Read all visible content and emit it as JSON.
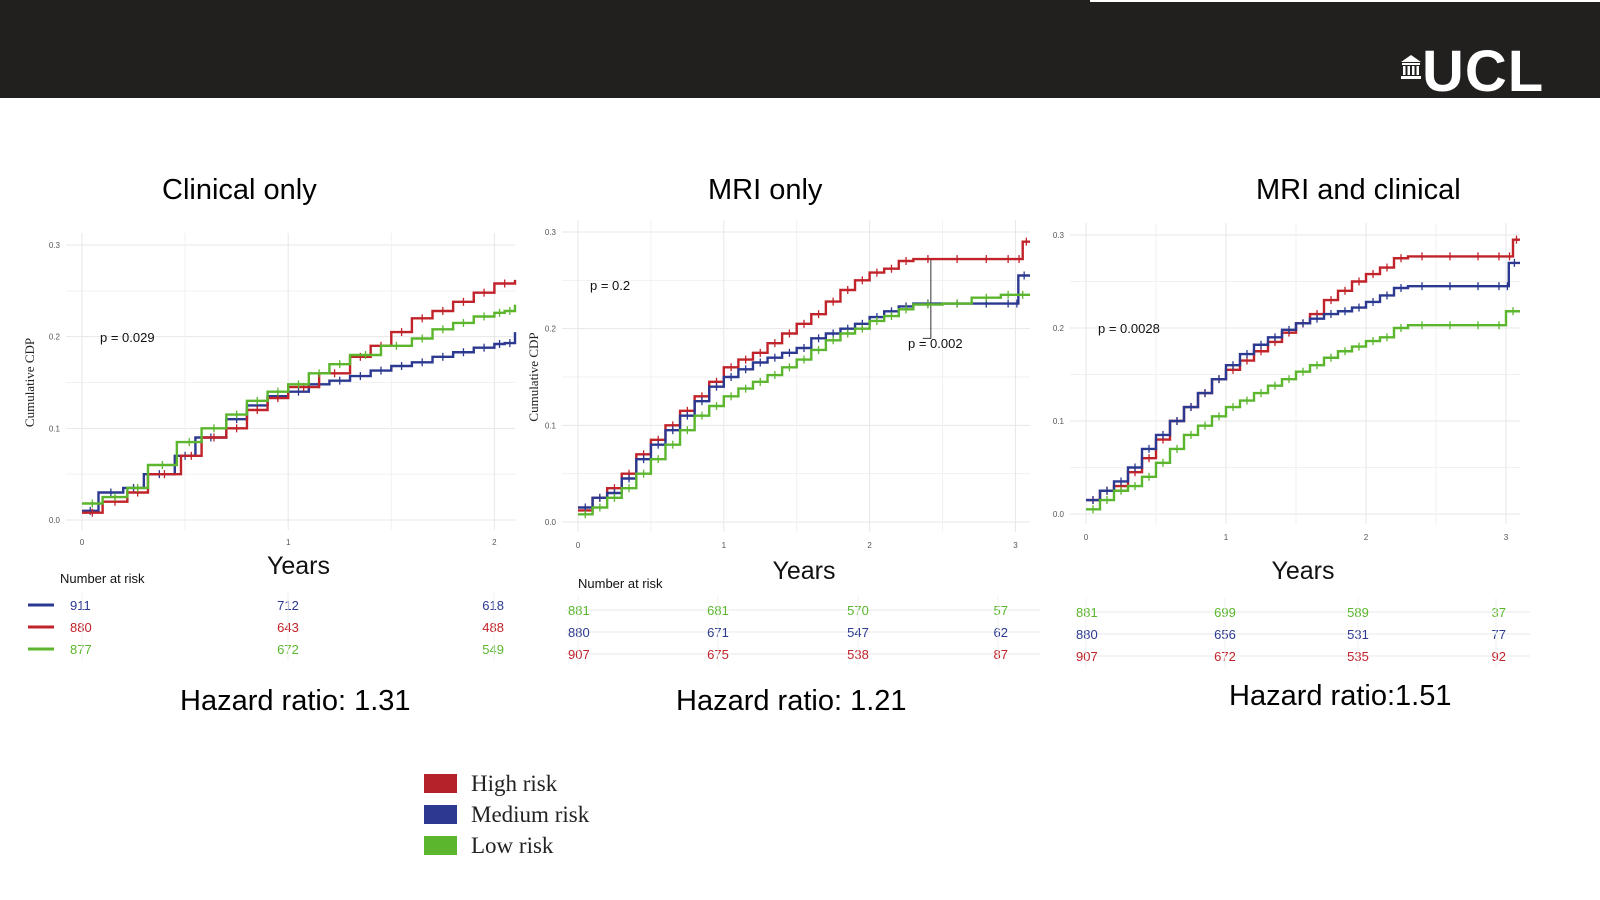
{
  "logo": {
    "text": "UCL"
  },
  "colors": {
    "high": "#c0232a",
    "medium": "#2b3990",
    "low": "#5bb62e",
    "header": "#221f1f"
  },
  "legend": [
    {
      "label": "High risk",
      "color": "#b5222a"
    },
    {
      "label": "Medium risk",
      "color": "#2b3990"
    },
    {
      "label": "Low risk",
      "color": "#5bb62e"
    }
  ],
  "chart_data": [
    {
      "type": "line",
      "title": "Clinical only",
      "xlabel": "Years",
      "ylabel": "Cumulative CDP",
      "xlim": [
        0,
        2.1
      ],
      "ylim": [
        0,
        0.3
      ],
      "xticks": [
        0,
        1,
        2
      ],
      "yticks": [
        0,
        0.1,
        0.2,
        0.3
      ],
      "ytick_labels": [
        "0.0",
        "0.1",
        "0.2",
        "0.3"
      ],
      "pvalue": "p = 0.029",
      "risk_table_title": "Number at risk",
      "series": [
        {
          "color": "#2b3990",
          "x": [
            0,
            0.08,
            0.2,
            0.3,
            0.45,
            0.55,
            0.7,
            0.8,
            0.9,
            1.0,
            1.1,
            1.2,
            1.3,
            1.4,
            1.5,
            1.6,
            1.7,
            1.8,
            1.9,
            2.0,
            2.05,
            2.1
          ],
          "y": [
            0.01,
            0.03,
            0.035,
            0.05,
            0.07,
            0.09,
            0.11,
            0.125,
            0.135,
            0.14,
            0.148,
            0.152,
            0.157,
            0.163,
            0.168,
            0.172,
            0.178,
            0.183,
            0.188,
            0.192,
            0.193,
            0.205
          ]
        },
        {
          "color": "#c0232a",
          "x": [
            0,
            0.1,
            0.22,
            0.32,
            0.48,
            0.58,
            0.7,
            0.8,
            0.9,
            1.0,
            1.15,
            1.3,
            1.4,
            1.5,
            1.6,
            1.7,
            1.8,
            1.9,
            2.0,
            2.1
          ],
          "y": [
            0.008,
            0.02,
            0.03,
            0.05,
            0.07,
            0.09,
            0.1,
            0.12,
            0.133,
            0.145,
            0.16,
            0.178,
            0.19,
            0.205,
            0.22,
            0.228,
            0.238,
            0.248,
            0.258,
            0.262
          ]
        },
        {
          "color": "#5bb62e",
          "x": [
            0,
            0.1,
            0.22,
            0.32,
            0.46,
            0.58,
            0.7,
            0.8,
            0.9,
            1.0,
            1.1,
            1.2,
            1.3,
            1.45,
            1.6,
            1.7,
            1.8,
            1.9,
            2.0,
            2.05,
            2.1
          ],
          "y": [
            0.018,
            0.025,
            0.035,
            0.06,
            0.085,
            0.1,
            0.115,
            0.13,
            0.14,
            0.148,
            0.16,
            0.17,
            0.18,
            0.19,
            0.198,
            0.208,
            0.215,
            0.222,
            0.226,
            0.228,
            0.235
          ]
        }
      ],
      "risk_table": [
        {
          "color": "#2b3990",
          "values": [
            "911",
            "712",
            "618"
          ]
        },
        {
          "color": "#c0232a",
          "values": [
            "880",
            "643",
            "488"
          ]
        },
        {
          "color": "#5bb62e",
          "values": [
            "877",
            "672",
            "549"
          ]
        }
      ],
      "hazard_ratio": "Hazard ratio: 1.31"
    },
    {
      "type": "line",
      "title": "MRI only",
      "xlabel": "Years",
      "ylabel": "Cumulative CDP",
      "xlim": [
        0,
        3.1
      ],
      "ylim": [
        0,
        0.3
      ],
      "xticks": [
        0,
        1,
        2,
        3
      ],
      "yticks": [
        0,
        0.1,
        0.2,
        0.3
      ],
      "ytick_labels": [
        "0.0",
        "0.1",
        "0.2",
        "0.3"
      ],
      "pvalue": "p = 0.2",
      "pvalue2": "p = 0.002",
      "risk_table_title": "Number at risk",
      "series": [
        {
          "color": "#c0232a",
          "x": [
            0,
            0.1,
            0.2,
            0.3,
            0.4,
            0.5,
            0.6,
            0.7,
            0.8,
            0.9,
            1.0,
            1.1,
            1.2,
            1.3,
            1.4,
            1.5,
            1.6,
            1.7,
            1.8,
            1.9,
            2.0,
            2.1,
            2.2,
            2.3,
            2.5,
            2.7,
            2.9,
            3.0,
            3.05,
            3.1
          ],
          "y": [
            0.012,
            0.025,
            0.035,
            0.05,
            0.07,
            0.085,
            0.1,
            0.115,
            0.13,
            0.145,
            0.16,
            0.168,
            0.175,
            0.185,
            0.195,
            0.205,
            0.215,
            0.228,
            0.24,
            0.25,
            0.258,
            0.262,
            0.27,
            0.272,
            0.272,
            0.272,
            0.272,
            0.272,
            0.29,
            0.29
          ]
        },
        {
          "color": "#2b3990",
          "x": [
            0,
            0.1,
            0.2,
            0.3,
            0.4,
            0.5,
            0.6,
            0.7,
            0.8,
            0.9,
            1.0,
            1.1,
            1.2,
            1.3,
            1.4,
            1.5,
            1.6,
            1.7,
            1.8,
            1.9,
            2.0,
            2.1,
            2.2,
            2.3,
            2.5,
            2.7,
            2.9,
            3.0,
            3.02,
            3.1
          ],
          "y": [
            0.015,
            0.025,
            0.03,
            0.045,
            0.065,
            0.08,
            0.095,
            0.11,
            0.125,
            0.14,
            0.15,
            0.158,
            0.165,
            0.17,
            0.175,
            0.18,
            0.19,
            0.195,
            0.2,
            0.205,
            0.212,
            0.218,
            0.223,
            0.226,
            0.226,
            0.226,
            0.226,
            0.226,
            0.255,
            0.255
          ]
        },
        {
          "color": "#5bb62e",
          "x": [
            0,
            0.1,
            0.2,
            0.3,
            0.4,
            0.5,
            0.6,
            0.7,
            0.8,
            0.9,
            1.0,
            1.1,
            1.2,
            1.3,
            1.4,
            1.5,
            1.6,
            1.7,
            1.8,
            1.9,
            2.0,
            2.1,
            2.2,
            2.3,
            2.5,
            2.7,
            2.9,
            3.0,
            3.1
          ],
          "y": [
            0.008,
            0.015,
            0.025,
            0.035,
            0.05,
            0.065,
            0.08,
            0.095,
            0.11,
            0.12,
            0.13,
            0.138,
            0.145,
            0.152,
            0.16,
            0.168,
            0.178,
            0.188,
            0.195,
            0.2,
            0.208,
            0.213,
            0.22,
            0.225,
            0.226,
            0.232,
            0.235,
            0.235,
            0.235
          ]
        }
      ],
      "risk_table": [
        {
          "color": "#5bb62e",
          "values": [
            "881",
            "681",
            "570",
            "57"
          ]
        },
        {
          "color": "#2b3990",
          "values": [
            "880",
            "671",
            "547",
            "62"
          ]
        },
        {
          "color": "#c0232a",
          "values": [
            "907",
            "675",
            "538",
            "87"
          ]
        }
      ],
      "hazard_ratio": "Hazard ratio: 1.21"
    },
    {
      "type": "line",
      "title": "MRI and clinical",
      "xlabel": "Years",
      "ylabel": "",
      "xlim": [
        0,
        3.1
      ],
      "ylim": [
        0,
        0.3
      ],
      "xticks": [
        0,
        1,
        2,
        3
      ],
      "yticks": [
        0,
        0.1,
        0.2,
        0.3
      ],
      "ytick_labels": [
        "0.0",
        "0.1",
        "0.2",
        "0.3"
      ],
      "pvalue": "p = 0.0028",
      "series": [
        {
          "color": "#c0232a",
          "x": [
            0,
            0.1,
            0.2,
            0.3,
            0.4,
            0.5,
            0.6,
            0.7,
            0.8,
            0.9,
            1.0,
            1.1,
            1.2,
            1.3,
            1.4,
            1.5,
            1.6,
            1.7,
            1.8,
            1.9,
            2.0,
            2.1,
            2.2,
            2.3,
            2.5,
            2.7,
            2.9,
            3.0,
            3.05,
            3.1
          ],
          "y": [
            0.015,
            0.025,
            0.03,
            0.045,
            0.06,
            0.08,
            0.1,
            0.115,
            0.13,
            0.145,
            0.155,
            0.165,
            0.175,
            0.185,
            0.195,
            0.205,
            0.215,
            0.23,
            0.24,
            0.25,
            0.258,
            0.265,
            0.275,
            0.277,
            0.277,
            0.277,
            0.277,
            0.277,
            0.295,
            0.295
          ]
        },
        {
          "color": "#2b3990",
          "x": [
            0,
            0.1,
            0.2,
            0.3,
            0.4,
            0.5,
            0.6,
            0.7,
            0.8,
            0.9,
            1.0,
            1.1,
            1.2,
            1.3,
            1.4,
            1.5,
            1.6,
            1.7,
            1.8,
            1.9,
            2.0,
            2.1,
            2.2,
            2.3,
            2.5,
            2.7,
            2.9,
            3.0,
            3.02,
            3.1
          ],
          "y": [
            0.015,
            0.025,
            0.035,
            0.05,
            0.07,
            0.085,
            0.1,
            0.115,
            0.13,
            0.145,
            0.16,
            0.172,
            0.182,
            0.19,
            0.198,
            0.205,
            0.21,
            0.215,
            0.218,
            0.222,
            0.228,
            0.235,
            0.243,
            0.245,
            0.245,
            0.245,
            0.245,
            0.245,
            0.27,
            0.27
          ]
        },
        {
          "color": "#5bb62e",
          "x": [
            0,
            0.1,
            0.2,
            0.3,
            0.4,
            0.5,
            0.6,
            0.7,
            0.8,
            0.9,
            1.0,
            1.1,
            1.2,
            1.3,
            1.4,
            1.5,
            1.6,
            1.7,
            1.8,
            1.9,
            2.0,
            2.1,
            2.2,
            2.3,
            2.5,
            2.7,
            2.9,
            3.0,
            3.1
          ],
          "y": [
            0.005,
            0.015,
            0.025,
            0.03,
            0.04,
            0.055,
            0.07,
            0.085,
            0.095,
            0.105,
            0.115,
            0.122,
            0.13,
            0.138,
            0.145,
            0.153,
            0.16,
            0.168,
            0.175,
            0.18,
            0.186,
            0.19,
            0.2,
            0.203,
            0.203,
            0.203,
            0.203,
            0.218,
            0.218
          ]
        }
      ],
      "risk_table": [
        {
          "color": "#5bb62e",
          "values": [
            "881",
            "699",
            "589",
            "37"
          ]
        },
        {
          "color": "#2b3990",
          "values": [
            "880",
            "656",
            "531",
            "77"
          ]
        },
        {
          "color": "#c0232a",
          "values": [
            "907",
            "672",
            "535",
            "92"
          ]
        }
      ],
      "hazard_ratio": "Hazard ratio:1.51"
    }
  ]
}
